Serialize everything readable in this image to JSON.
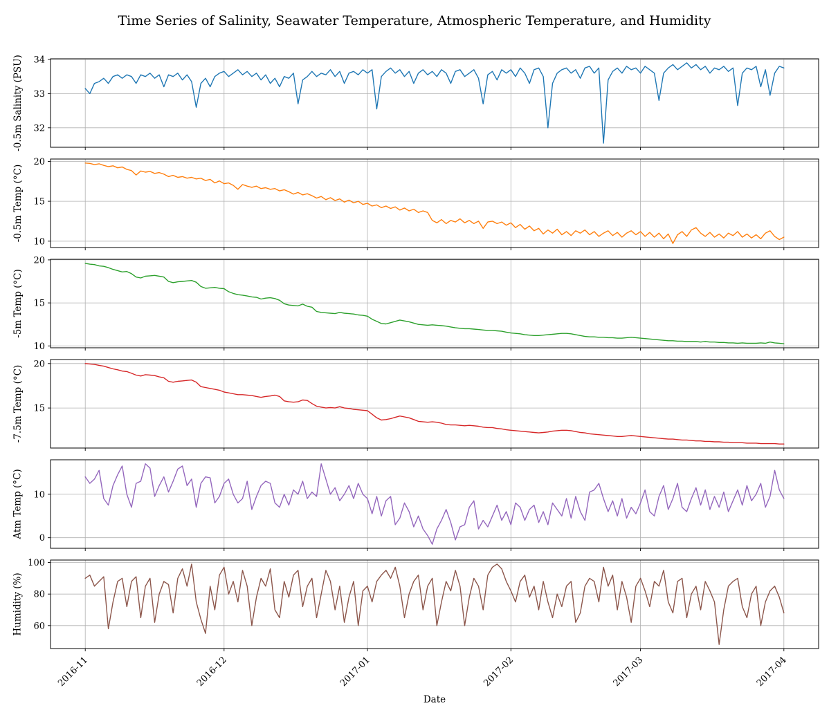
{
  "title": "Time Series of Salinity, Seawater Temperature, Atmospheric Temperature, and Humidity",
  "xlabel": "Date",
  "x_tick_labels": [
    "2016-11",
    "2016-12",
    "2017-01",
    "2017-02",
    "2017-03",
    "2017-04"
  ],
  "chart_data": {
    "type": "line",
    "title": "Time Series of Salinity, Seawater Temperature, Atmospheric Temperature, and Humidity",
    "xlabel": "Date",
    "x_unit": "days since 2016-11-01, one value per day",
    "x_ticks_days": [
      0,
      30,
      61,
      92,
      120,
      151
    ],
    "x_tick_labels": [
      "2016-11",
      "2016-12",
      "2017-01",
      "2017-02",
      "2017-03",
      "2017-04"
    ],
    "xlim_days": [
      -7.5,
      158.5
    ],
    "grid": true,
    "grid_color": "#b0b0b0",
    "legend": "none",
    "subplots": [
      {
        "id": "salinity-0-5m",
        "ylabel": "-0.5m Salinity (PSU)",
        "color": "#1f77b4",
        "ylim": [
          31.43,
          34.02
        ],
        "yticks": [
          32,
          33,
          34
        ],
        "values": [
          33.15,
          33.0,
          33.3,
          33.35,
          33.45,
          33.3,
          33.5,
          33.55,
          33.45,
          33.55,
          33.5,
          33.3,
          33.55,
          33.5,
          33.6,
          33.45,
          33.55,
          33.2,
          33.55,
          33.5,
          33.6,
          33.4,
          33.55,
          33.35,
          32.6,
          33.3,
          33.45,
          33.2,
          33.5,
          33.6,
          33.65,
          33.5,
          33.6,
          33.7,
          33.55,
          33.65,
          33.5,
          33.6,
          33.4,
          33.55,
          33.3,
          33.45,
          33.2,
          33.5,
          33.45,
          33.6,
          32.7,
          33.4,
          33.5,
          33.65,
          33.5,
          33.6,
          33.55,
          33.7,
          33.5,
          33.65,
          33.3,
          33.6,
          33.65,
          33.55,
          33.7,
          33.6,
          33.7,
          32.55,
          33.5,
          33.65,
          33.75,
          33.6,
          33.7,
          33.5,
          33.65,
          33.3,
          33.6,
          33.7,
          33.55,
          33.65,
          33.5,
          33.7,
          33.6,
          33.3,
          33.65,
          33.7,
          33.5,
          33.6,
          33.7,
          33.45,
          32.7,
          33.55,
          33.65,
          33.4,
          33.7,
          33.6,
          33.7,
          33.5,
          33.75,
          33.6,
          33.3,
          33.7,
          33.75,
          33.5,
          32.0,
          33.3,
          33.6,
          33.7,
          33.75,
          33.6,
          33.7,
          33.45,
          33.75,
          33.8,
          33.6,
          33.75,
          31.55,
          33.4,
          33.65,
          33.75,
          33.6,
          33.8,
          33.7,
          33.75,
          33.6,
          33.8,
          33.7,
          33.6,
          32.8,
          33.6,
          33.75,
          33.85,
          33.7,
          33.8,
          33.9,
          33.75,
          33.85,
          33.7,
          33.8,
          33.6,
          33.75,
          33.7,
          33.8,
          33.65,
          33.75,
          32.65,
          33.6,
          33.75,
          33.7,
          33.8,
          33.2,
          33.7,
          32.95,
          33.6,
          33.8,
          33.75
        ]
      },
      {
        "id": "temp-0-5m",
        "ylabel": "-0.5m Temp (°C)",
        "color": "#ff7f0e",
        "ylim": [
          9.2,
          20.3
        ],
        "yticks": [
          10,
          15,
          20
        ],
        "values": [
          19.8,
          19.75,
          19.6,
          19.7,
          19.5,
          19.35,
          19.45,
          19.2,
          19.3,
          19.0,
          18.85,
          18.3,
          18.8,
          18.65,
          18.75,
          18.5,
          18.6,
          18.4,
          18.1,
          18.25,
          18.0,
          18.1,
          17.9,
          18.0,
          17.8,
          17.9,
          17.6,
          17.75,
          17.3,
          17.55,
          17.2,
          17.3,
          17.0,
          16.5,
          17.1,
          16.9,
          16.75,
          16.9,
          16.6,
          16.7,
          16.5,
          16.6,
          16.3,
          16.45,
          16.2,
          15.9,
          16.1,
          15.8,
          15.95,
          15.7,
          15.4,
          15.6,
          15.2,
          15.45,
          15.1,
          15.3,
          14.9,
          15.15,
          14.8,
          15.0,
          14.6,
          14.75,
          14.4,
          14.55,
          14.2,
          14.4,
          14.1,
          14.3,
          13.9,
          14.15,
          13.8,
          14.0,
          13.6,
          13.8,
          13.6,
          12.6,
          12.3,
          12.7,
          12.2,
          12.6,
          12.4,
          12.8,
          12.3,
          12.6,
          12.2,
          12.5,
          11.6,
          12.4,
          12.5,
          12.2,
          12.4,
          12.0,
          12.3,
          11.7,
          12.1,
          11.5,
          11.9,
          11.3,
          11.6,
          10.9,
          11.4,
          11.0,
          11.5,
          10.8,
          11.2,
          10.7,
          11.3,
          11.0,
          11.4,
          10.8,
          11.2,
          10.6,
          11.0,
          11.3,
          10.7,
          11.1,
          10.5,
          11.0,
          11.3,
          10.8,
          11.2,
          10.6,
          11.1,
          10.5,
          11.0,
          10.3,
          10.9,
          9.7,
          10.8,
          11.2,
          10.6,
          11.4,
          11.7,
          11.0,
          10.6,
          11.1,
          10.5,
          10.9,
          10.4,
          11.0,
          10.7,
          11.2,
          10.5,
          10.9,
          10.4,
          10.8,
          10.3,
          11.0,
          11.3,
          10.6,
          10.2,
          10.5
        ]
      },
      {
        "id": "temp-5m",
        "ylabel": "-5m Temp (°C)",
        "color": "#2ca02c",
        "ylim": [
          9.78,
          20.07
        ],
        "yticks": [
          10,
          15,
          20
        ],
        "values": [
          19.6,
          19.5,
          19.45,
          19.3,
          19.25,
          19.1,
          18.9,
          18.75,
          18.6,
          18.65,
          18.4,
          18.0,
          17.9,
          18.1,
          18.15,
          18.2,
          18.1,
          18.0,
          17.5,
          17.35,
          17.45,
          17.5,
          17.55,
          17.6,
          17.4,
          16.9,
          16.7,
          16.75,
          16.8,
          16.7,
          16.65,
          16.3,
          16.1,
          15.95,
          15.9,
          15.8,
          15.7,
          15.65,
          15.45,
          15.55,
          15.6,
          15.5,
          15.3,
          14.9,
          14.75,
          14.7,
          14.65,
          14.85,
          14.6,
          14.5,
          14.0,
          13.9,
          13.85,
          13.8,
          13.75,
          13.9,
          13.8,
          13.75,
          13.7,
          13.6,
          13.55,
          13.45,
          13.1,
          12.85,
          12.6,
          12.55,
          12.7,
          12.85,
          13.0,
          12.9,
          12.8,
          12.65,
          12.5,
          12.45,
          12.4,
          12.45,
          12.4,
          12.35,
          12.3,
          12.2,
          12.1,
          12.05,
          12.0,
          12.0,
          11.95,
          11.9,
          11.85,
          11.8,
          11.8,
          11.75,
          11.7,
          11.6,
          11.5,
          11.45,
          11.4,
          11.3,
          11.25,
          11.2,
          11.2,
          11.25,
          11.3,
          11.35,
          11.4,
          11.45,
          11.45,
          11.4,
          11.3,
          11.2,
          11.1,
          11.05,
          11.05,
          11.0,
          11.0,
          10.95,
          10.95,
          10.9,
          10.9,
          10.95,
          11.0,
          10.95,
          10.9,
          10.85,
          10.8,
          10.75,
          10.7,
          10.65,
          10.6,
          10.6,
          10.55,
          10.55,
          10.5,
          10.5,
          10.5,
          10.45,
          10.5,
          10.45,
          10.45,
          10.4,
          10.4,
          10.35,
          10.35,
          10.3,
          10.35,
          10.3,
          10.3,
          10.3,
          10.35,
          10.3,
          10.45,
          10.35,
          10.3,
          10.25
        ]
      },
      {
        "id": "temp-7-5m",
        "ylabel": "-7.5m Temp (°C)",
        "color": "#d62728",
        "ylim": [
          10.5,
          20.45
        ],
        "yticks": [
          15,
          20
        ],
        "values": [
          20.0,
          19.95,
          19.9,
          19.8,
          19.7,
          19.55,
          19.4,
          19.3,
          19.15,
          19.1,
          18.9,
          18.7,
          18.6,
          18.75,
          18.7,
          18.65,
          18.5,
          18.4,
          18.0,
          17.9,
          18.0,
          18.05,
          18.1,
          18.15,
          17.9,
          17.4,
          17.3,
          17.2,
          17.1,
          17.0,
          16.8,
          16.7,
          16.6,
          16.5,
          16.5,
          16.45,
          16.4,
          16.3,
          16.2,
          16.3,
          16.35,
          16.45,
          16.3,
          15.8,
          15.7,
          15.65,
          15.7,
          15.9,
          15.85,
          15.5,
          15.2,
          15.1,
          15.0,
          15.05,
          15.0,
          15.15,
          15.0,
          14.95,
          14.85,
          14.8,
          14.75,
          14.7,
          14.3,
          13.9,
          13.65,
          13.7,
          13.8,
          13.95,
          14.1,
          14.0,
          13.9,
          13.7,
          13.5,
          13.45,
          13.4,
          13.45,
          13.4,
          13.3,
          13.15,
          13.1,
          13.1,
          13.05,
          13.0,
          13.05,
          13.0,
          12.95,
          12.85,
          12.8,
          12.8,
          12.7,
          12.65,
          12.55,
          12.5,
          12.45,
          12.4,
          12.35,
          12.3,
          12.25,
          12.2,
          12.25,
          12.3,
          12.4,
          12.45,
          12.5,
          12.5,
          12.45,
          12.35,
          12.25,
          12.2,
          12.1,
          12.05,
          12.0,
          11.95,
          11.9,
          11.85,
          11.8,
          11.8,
          11.85,
          11.9,
          11.85,
          11.8,
          11.75,
          11.7,
          11.65,
          11.6,
          11.55,
          11.5,
          11.5,
          11.45,
          11.4,
          11.4,
          11.35,
          11.3,
          11.3,
          11.25,
          11.25,
          11.2,
          11.2,
          11.15,
          11.15,
          11.1,
          11.1,
          11.1,
          11.05,
          11.05,
          11.05,
          11.0,
          11.0,
          11.0,
          11.0,
          10.95,
          10.95
        ]
      },
      {
        "id": "atm-temp",
        "ylabel": "Atm Temp (°C)",
        "color": "#9467bd",
        "ylim": [
          -2.43,
          17.93
        ],
        "yticks": [
          0,
          10
        ],
        "values": [
          14.0,
          12.5,
          13.5,
          15.5,
          9.0,
          7.5,
          12.0,
          14.5,
          16.5,
          10.0,
          7.0,
          12.5,
          13.0,
          17.0,
          16.0,
          9.5,
          12.0,
          14.0,
          10.5,
          13.0,
          15.8,
          16.5,
          12.0,
          13.5,
          7.0,
          12.5,
          14.0,
          13.8,
          8.0,
          9.5,
          12.5,
          13.5,
          10.0,
          8.0,
          9.0,
          13.0,
          6.5,
          9.5,
          12.0,
          13.0,
          12.5,
          8.0,
          7.0,
          10.0,
          7.5,
          11.0,
          10.0,
          13.0,
          9.0,
          10.5,
          9.5,
          17.0,
          13.5,
          10.0,
          11.5,
          8.5,
          10.0,
          12.0,
          9.0,
          12.5,
          10.0,
          9.0,
          5.5,
          9.5,
          5.0,
          8.5,
          9.5,
          3.0,
          4.5,
          8.0,
          6.0,
          2.5,
          5.0,
          2.0,
          0.5,
          -1.5,
          2.0,
          4.0,
          6.5,
          3.5,
          -0.5,
          2.5,
          3.0,
          7.0,
          8.5,
          2.0,
          4.0,
          2.5,
          5.0,
          7.5,
          4.0,
          6.0,
          3.0,
          8.0,
          7.0,
          4.0,
          6.5,
          7.5,
          3.5,
          6.0,
          3.0,
          8.0,
          6.5,
          5.0,
          9.0,
          4.5,
          9.5,
          6.0,
          4.0,
          10.5,
          11.0,
          12.5,
          9.0,
          6.0,
          8.5,
          5.0,
          9.0,
          4.5,
          7.0,
          5.5,
          8.0,
          11.0,
          6.0,
          5.0,
          9.5,
          12.0,
          6.5,
          9.0,
          12.5,
          7.0,
          6.0,
          9.0,
          11.5,
          7.5,
          11.0,
          6.5,
          9.5,
          7.0,
          10.5,
          6.0,
          8.5,
          11.0,
          7.5,
          12.0,
          8.5,
          10.0,
          12.5,
          7.0,
          9.5,
          15.5,
          11.0,
          9.0
        ]
      },
      {
        "id": "humidity",
        "ylabel": "Humidity (%)",
        "color": "#8c564b",
        "ylim": [
          45.45,
          101.55
        ],
        "yticks": [
          60,
          80,
          100
        ],
        "values": [
          90,
          92,
          85,
          88,
          91,
          58,
          75,
          88,
          90,
          72,
          88,
          91,
          65,
          85,
          90,
          62,
          80,
          88,
          86,
          68,
          90,
          96,
          85,
          99,
          75,
          64,
          55,
          85,
          70,
          92,
          97,
          80,
          88,
          75,
          95,
          85,
          60,
          78,
          90,
          85,
          96,
          70,
          65,
          88,
          78,
          92,
          95,
          72,
          85,
          90,
          65,
          80,
          95,
          88,
          70,
          85,
          62,
          78,
          88,
          60,
          82,
          85,
          75,
          88,
          92,
          95,
          90,
          97,
          85,
          65,
          80,
          88,
          92,
          70,
          85,
          90,
          60,
          75,
          88,
          82,
          95,
          85,
          60,
          78,
          90,
          85,
          70,
          92,
          97,
          99,
          96,
          88,
          82,
          75,
          88,
          92,
          78,
          85,
          70,
          88,
          75,
          65,
          80,
          72,
          85,
          88,
          62,
          68,
          85,
          90,
          88,
          75,
          97,
          85,
          92,
          70,
          88,
          78,
          62,
          85,
          90,
          82,
          72,
          88,
          85,
          95,
          75,
          68,
          88,
          90,
          65,
          80,
          85,
          70,
          88,
          82,
          75,
          48,
          70,
          85,
          88,
          90,
          72,
          65,
          80,
          85,
          60,
          75,
          82,
          85,
          78,
          68
        ]
      }
    ]
  }
}
